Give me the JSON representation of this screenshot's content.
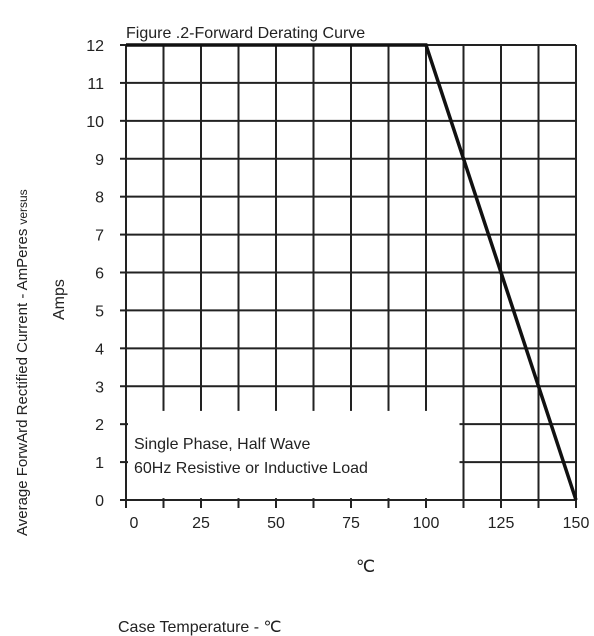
{
  "chart_data": {
    "type": "line",
    "title": "Figure .2-Forward Derating Curve",
    "ylabel_line1": "Average ForwArd Rectified Current  -  AmPeres",
    "ylabel_suffix": "versus",
    "ylabel_line2": "Amps",
    "xlabel_unit": "℃",
    "xlabel": "Case Temperature  -  ℃",
    "xlim": [
      0,
      150
    ],
    "ylim": [
      0,
      12
    ],
    "x_ticks": [
      "0",
      "25",
      "50",
      "75",
      "100",
      "125",
      "150"
    ],
    "y_ticks": [
      "0",
      "1",
      "2",
      "3",
      "4",
      "5",
      "6",
      "7",
      "8",
      "9",
      "10",
      "11",
      "12"
    ],
    "grid": true,
    "annotation_line1": "Single Phase, Half Wave",
    "annotation_line2": "60Hz Resistive or Inductive Load",
    "series": [
      {
        "x": [
          0,
          100,
          150
        ],
        "y": [
          12,
          12,
          0
        ]
      }
    ]
  }
}
